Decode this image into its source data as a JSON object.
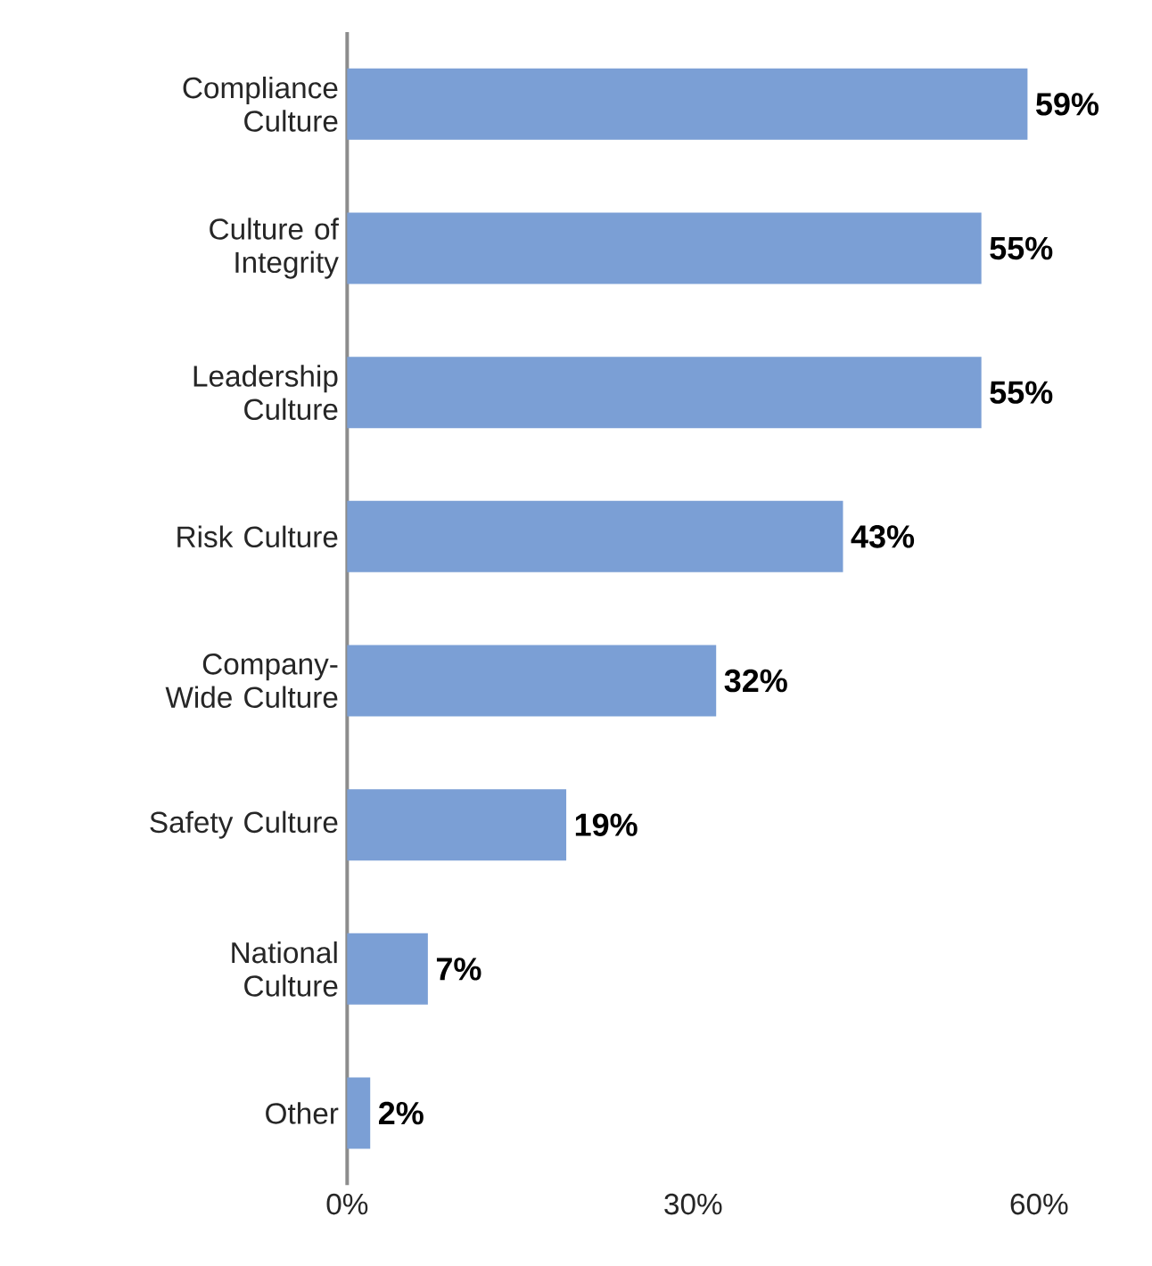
{
  "chart_data": {
    "type": "bar",
    "orientation": "horizontal",
    "categories": [
      "Compliance Culture",
      "Culture of Integrity",
      "Leadership Culture",
      "Risk Culture",
      "Company-Wide Culture",
      "Safety Culture",
      "National Culture",
      "Other"
    ],
    "values": [
      59,
      55,
      55,
      43,
      32,
      19,
      7,
      2
    ],
    "value_labels": [
      "59%",
      "55%",
      "55%",
      "43%",
      "32%",
      "19%",
      "7%",
      "2%"
    ],
    "color": "#7b9fd5",
    "xlim": [
      0,
      60
    ],
    "xticks": [
      {
        "value": 0,
        "label": "0%"
      },
      {
        "value": 30,
        "label": "30%"
      },
      {
        "value": 60,
        "label": "60%"
      }
    ],
    "grid": false
  }
}
